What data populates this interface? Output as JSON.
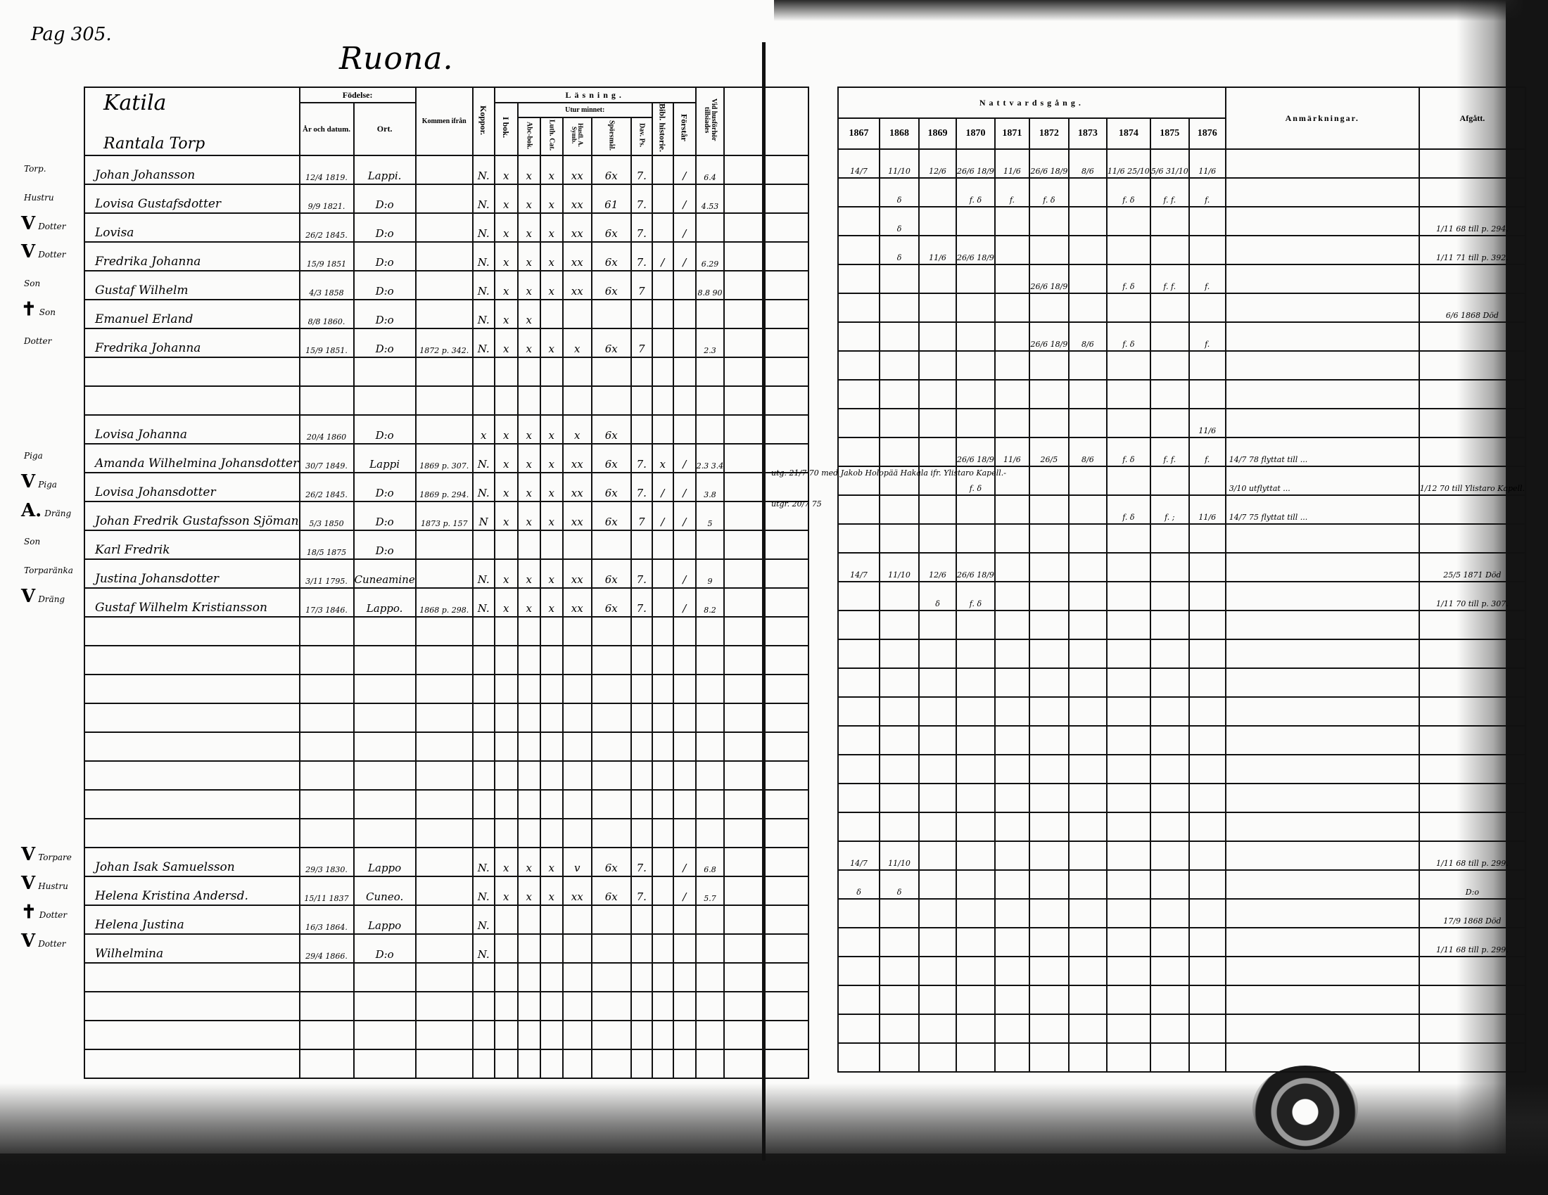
{
  "page_number": "Pag 305.",
  "place": "Ruona.",
  "farm": "Katila",
  "subfarm": "Rantala Torp",
  "headers": {
    "fodelse": "Födelse:",
    "ar": "År och datum.",
    "ort": "Ort.",
    "kommen": "Kommen ifrån",
    "koppor": "Koppor.",
    "lasning": "Läsning.",
    "ibok": "I bok.",
    "utur": "Utur minnet:",
    "abc": "Abc-bok.",
    "luth": "Luth. Cat.",
    "husfl": "Husfl. A. Symb.",
    "spors": "Spörsmål.",
    "dav": "Dav. Ps.",
    "bibl": "Bibl. historie.",
    "forstar": "Förstår",
    "vid": "Vid husförhör tillsiades",
    "nattvard": "Nattvardsgång.",
    "years": [
      "1867",
      "1868",
      "1869",
      "1870",
      "1871",
      "1872",
      "1873",
      "1874",
      "1875",
      "1876"
    ],
    "anm": "Anmärkningar.",
    "afgatt": "Afgått."
  },
  "rows": [
    {
      "m": "",
      "rel": "Torp.",
      "name": "Johan Johansson",
      "date": "12/4 1819.",
      "place": "Lappi.",
      "from": "",
      "r": [
        "N.",
        "x",
        "x",
        "x",
        "xx",
        "6x",
        "7.",
        "",
        "/"
      ],
      "vid": "6.4",
      "c": [
        "14/7",
        "11/10",
        "12/6",
        "26/6 18/9",
        "11/6",
        "26/6 18/9",
        "8/6",
        "11/6 25/10",
        "5/6 31/10",
        "11/6"
      ],
      "anm": "",
      "afg": ""
    },
    {
      "m": "",
      "rel": "Hustru",
      "name": "Lovisa Gustafsdotter",
      "date": "9/9 1821.",
      "place": "D:o",
      "from": "",
      "r": [
        "N.",
        "x",
        "x",
        "x",
        "xx",
        "61",
        "7.",
        "",
        "/"
      ],
      "vid": "4.53",
      "c": [
        "",
        "δ",
        "",
        "f. δ",
        "f.",
        "f. δ",
        "",
        "f. δ",
        "f. f.",
        "f."
      ],
      "anm": "",
      "afg": ""
    },
    {
      "m": "V",
      "rel": "Dotter",
      "name": "Lovisa",
      "date": "26/2 1845.",
      "place": "D:o",
      "from": "",
      "r": [
        "N.",
        "x",
        "x",
        "x",
        "xx",
        "6x",
        "7.",
        "",
        "/"
      ],
      "vid": "",
      "c": [
        "",
        "δ",
        "",
        "",
        "",
        "",
        "",
        "",
        "",
        ""
      ],
      "anm": "",
      "afg": "1/11 68 till p. 294."
    },
    {
      "m": "V",
      "rel": "Dotter",
      "name": "Fredrika Johanna",
      "date": "15/9 1851",
      "place": "D:o",
      "from": "",
      "r": [
        "N.",
        "x",
        "x",
        "x",
        "xx",
        "6x",
        "7.",
        "/",
        "/"
      ],
      "vid": "6.29",
      "c": [
        "",
        "δ",
        "11/6",
        "26/6 18/9",
        "",
        "",
        "",
        "",
        "",
        ""
      ],
      "anm": "",
      "afg": "1/11 71 till p. 392."
    },
    {
      "m": "",
      "rel": "Son",
      "name": "Gustaf Wilhelm",
      "date": "4/3 1858",
      "place": "D:o",
      "from": "",
      "r": [
        "N.",
        "x",
        "x",
        "x",
        "xx",
        "6x",
        "7",
        "",
        ""
      ],
      "vid": "8.8 90",
      "c": [
        "",
        "",
        "",
        "",
        "",
        "26/6 18/9",
        "",
        "f. δ",
        "f. f.",
        "f."
      ],
      "anm": "",
      "afg": ""
    },
    {
      "m": "✝",
      "rel": "Son",
      "name": "Emanuel Erland",
      "date": "8/8 1860.",
      "place": "D:o",
      "from": "",
      "r": [
        "N.",
        "x",
        "x",
        "",
        "",
        "",
        "",
        "",
        ""
      ],
      "vid": "",
      "c": [
        "",
        "",
        "",
        "",
        "",
        "",
        "",
        "",
        "",
        ""
      ],
      "anm": "",
      "afg": "6/6 1868 Död"
    },
    {
      "m": "",
      "rel": "Dotter",
      "name": "Fredrika Johanna",
      "date": "15/9 1851.",
      "place": "D:o",
      "from": "1872 p. 342.",
      "r": [
        "N.",
        "x",
        "x",
        "x",
        "x",
        "6x",
        "7",
        "",
        ""
      ],
      "vid": "2.3",
      "c": [
        "",
        "",
        "",
        "",
        "",
        "26/6 18/9",
        "8/6",
        "f. δ",
        "",
        "f."
      ],
      "anm": "",
      "afg": ""
    },
    {},
    {},
    {
      "m": "",
      "rel": "",
      "name": "Lovisa Johanna",
      "date": "20/4 1860",
      "place": "D:o",
      "from": "",
      "r": [
        "x",
        "x",
        "x",
        "x",
        "x",
        "6x",
        "",
        "",
        ""
      ],
      "vid": "",
      "c": [
        "",
        "",
        "",
        "",
        "",
        "",
        "",
        "",
        "",
        "11/6"
      ],
      "anm": "",
      "afg": ""
    },
    {
      "m": "",
      "rel": "Piga",
      "name": "Amanda Wilhelmina Johansdotter",
      "date": "30/7 1849.",
      "place": "Lappi",
      "from": "1869 p. 307.",
      "r": [
        "N.",
        "x",
        "x",
        "x",
        "xx",
        "6x",
        "7.",
        "x",
        "/"
      ],
      "vid": "2.3 3.4",
      "c": [
        "",
        "",
        "",
        "26/6 18/9",
        "11/6",
        "26/5",
        "8/6",
        "f. δ",
        "f. f.",
        "f."
      ],
      "anm": "14/7 78 flyttat till ...",
      "afg": ""
    },
    {
      "m": "V",
      "rel": "Piga",
      "name": "Lovisa Johansdotter",
      "date": "26/2 1845.",
      "place": "D:o",
      "from": "1869 p. 294.",
      "r": [
        "N.",
        "x",
        "x",
        "x",
        "xx",
        "6x",
        "7.",
        "/",
        "/"
      ],
      "vid": "3.8",
      "c": [
        "",
        "",
        "",
        "f. δ",
        "",
        "",
        "",
        "",
        "",
        ""
      ],
      "anm": "3/10 utflyttat ...",
      "afg": "1/12 70 till Ylistaro Kapell."
    },
    {
      "m": "A.",
      "rel": "Dräng",
      "name": "Johan Fredrik Gustafsson Sjöman",
      "date": "5/3 1850",
      "place": "D:o",
      "from": "1873 p. 157",
      "r": [
        "N",
        "x",
        "x",
        "x",
        "xx",
        "6x",
        "7",
        "/",
        "/"
      ],
      "vid": "5",
      "c": [
        "",
        "",
        "",
        "",
        "",
        "",
        "",
        "f. δ",
        "f. ;",
        "11/6"
      ],
      "anm": "14/7 75 flyttat till ...",
      "afg": ""
    },
    {
      "m": "",
      "rel": "Son",
      "name": "Karl Fredrik",
      "date": "18/5 1875",
      "place": "D:o",
      "from": "",
      "r": [
        "",
        "",
        "",
        "",
        "",
        "",
        "",
        "",
        ""
      ],
      "vid": "",
      "c": [
        "",
        "",
        "",
        "",
        "",
        "",
        "",
        "",
        "",
        ""
      ],
      "anm": "",
      "afg": ""
    },
    {
      "m": "",
      "rel": "Torparänka",
      "name": "Justina Johansdotter",
      "date": "3/11 1795.",
      "place": "Cuneamine",
      "from": "",
      "r": [
        "N.",
        "x",
        "x",
        "x",
        "xx",
        "6x",
        "7.",
        "",
        "/"
      ],
      "vid": "9",
      "c": [
        "14/7",
        "11/10",
        "12/6",
        "26/6 18/9",
        "",
        "",
        "",
        "",
        "",
        ""
      ],
      "anm": "",
      "afg": "25/5 1871 Död"
    },
    {
      "m": "V",
      "rel": "Dräng",
      "name": "Gustaf Wilhelm Kristiansson",
      "date": "17/3 1846.",
      "place": "Lappo.",
      "from": "1868 p. 298.",
      "r": [
        "N.",
        "x",
        "x",
        "x",
        "xx",
        "6x",
        "7.",
        "",
        "/"
      ],
      "vid": "8.2",
      "c": [
        "",
        "",
        "δ",
        "f. δ",
        "",
        "",
        "",
        "",
        "",
        ""
      ],
      "anm": "",
      "afg": "1/11 70 till p. 307."
    },
    {},
    {},
    {},
    {},
    {},
    {},
    {},
    {},
    {
      "m": "V",
      "rel": "Torpare",
      "name": "Johan Isak Samuelsson",
      "date": "29/3 1830.",
      "place": "Lappo",
      "from": "",
      "r": [
        "N.",
        "x",
        "x",
        "x",
        "v",
        "6x",
        "7.",
        "",
        "/"
      ],
      "vid": "6.8",
      "c": [
        "14/7",
        "11/10",
        "",
        "",
        "",
        "",
        "",
        "",
        "",
        ""
      ],
      "anm": "",
      "afg": "1/11 68 till p. 299."
    },
    {
      "m": "V",
      "rel": "Hustru",
      "name": "Helena Kristina Andersd.",
      "date": "15/11 1837",
      "place": "Cuneo.",
      "from": "",
      "r": [
        "N.",
        "x",
        "x",
        "x",
        "xx",
        "6x",
        "7.",
        "",
        "/"
      ],
      "vid": "5.7",
      "c": [
        "δ",
        "δ",
        "",
        "",
        "",
        "",
        "",
        "",
        "",
        ""
      ],
      "anm": "",
      "afg": "D:o"
    },
    {
      "m": "✝",
      "rel": "Dotter",
      "name": "Helena Justina",
      "date": "16/3 1864.",
      "place": "Lappo",
      "from": "",
      "r": [
        "N.",
        "",
        "",
        "",
        "",
        "",
        "",
        "",
        ""
      ],
      "vid": "",
      "c": [
        "",
        "",
        "",
        "",
        "",
        "",
        "",
        "",
        "",
        ""
      ],
      "anm": "",
      "afg": "17/9 1868 Död"
    },
    {
      "m": "V",
      "rel": "Dotter",
      "name": "Wilhelmina",
      "date": "29/4 1866.",
      "place": "D:o",
      "from": "",
      "r": [
        "N.",
        "",
        "",
        "",
        "",
        "",
        "",
        "",
        ""
      ],
      "vid": "",
      "c": [
        "",
        "",
        "",
        "",
        "",
        "",
        "",
        "",
        "",
        ""
      ],
      "anm": "",
      "afg": "1/11 68 till p. 299."
    },
    {},
    {},
    {},
    {}
  ],
  "notes": {
    "row11_communion_note": "utg. 21/7 70 med Jakob Holopää Hakala ifr. Ylistaro Kapell.-",
    "row12_communion_note": "utgr. 20/7 75"
  }
}
